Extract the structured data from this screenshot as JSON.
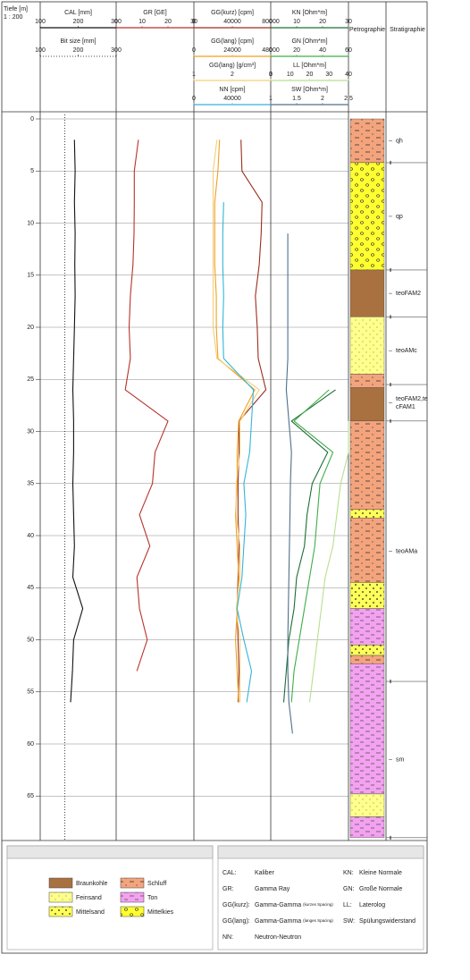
{
  "chart_data": {
    "type": "well_log",
    "depth_label": "Tiefe [m]",
    "scale_label": "1 : 200",
    "ylim": [
      0,
      69
    ],
    "yticks": [
      0,
      5,
      10,
      15,
      20,
      25,
      30,
      35,
      40,
      45,
      50,
      55,
      60,
      65
    ],
    "grid": true,
    "depth": [
      2,
      5,
      8,
      11,
      14,
      17,
      20,
      23,
      26,
      29,
      32,
      35,
      38,
      41,
      44,
      47,
      50,
      53,
      56,
      59
    ],
    "tracks": [
      {
        "curves": [
          {
            "name": "CAL [mm]",
            "color": "#111111",
            "xlim": [
              100,
              300
            ],
            "xticks": [
              100,
              200,
              300
            ],
            "values": [
              190,
              192,
              190,
              192,
              191,
              192,
              190,
              188,
              186,
              188,
              188,
              186,
              188,
              190,
              186,
              212,
              188,
              185,
              180,
              null
            ]
          },
          {
            "name": "Bit size [mm]",
            "color": "#111111",
            "dashed": true,
            "xlim": [
              100,
              300
            ],
            "xticks": [
              100,
              200,
              300
            ],
            "value": 165
          }
        ]
      },
      {
        "curves": [
          {
            "name": "GR [GE]",
            "color": "#b8322a",
            "xlim": [
              0,
              30
            ],
            "xticks": [
              0,
              10,
              20,
              30
            ],
            "values": [
              8.6,
              7,
              7,
              6.9,
              6.5,
              5.5,
              5,
              5.5,
              3.5,
              20,
              15,
              14,
              9,
              13,
              8,
              9,
              12,
              8,
              null,
              null
            ]
          }
        ]
      },
      {
        "curves": [
          {
            "name": "GG(kurz) [cpm]",
            "color": "#9a2e1e",
            "xlim": [
              0,
              80000
            ],
            "xticks": [
              0,
              40000,
              80000
            ],
            "values": [
              49000,
              50000,
              71000,
              70000,
              68000,
              64000,
              66000,
              67000,
              75000,
              47000,
              47000,
              46000,
              46000,
              47000,
              46000,
              45000,
              46000,
              47000,
              46000,
              null
            ]
          },
          {
            "name": "GG(lang) [cpm]",
            "color": "#f0a020",
            "xlim": [
              0,
              48000
            ],
            "xticks": [
              0,
              24000,
              48000
            ],
            "values": [
              16000,
              15000,
              13000,
              13000,
              13000,
              14000,
              14000,
              15000,
              38000,
              28000,
              27000,
              27000,
              26000,
              27000,
              28000,
              27000,
              26000,
              27000,
              28000,
              null
            ]
          },
          {
            "name": "GG(lang) [g/cm³]",
            "color": "#f3cf7a",
            "xlim": [
              1,
              3
            ],
            "xticks": [
              1,
              2,
              3
            ],
            "values": [
              1.6,
              1.5,
              1.5,
              1.5,
              1.5,
              1.5,
              1.5,
              1.6,
              2.7,
              2.2,
              2.2,
              2.1,
              2.1,
              2.2,
              2.2,
              2.1,
              2.2,
              2.2,
              2.2,
              null
            ]
          },
          {
            "name": "NN [cpm]",
            "color": "#33b5d6",
            "xlim": [
              0,
              80000
            ],
            "xticks": [
              0,
              40000
            ],
            "values": [
              null,
              null,
              31000,
              30000,
              30000,
              31000,
              30000,
              31000,
              62000,
              60000,
              58000,
              52000,
              54000,
              52000,
              50000,
              45000,
              52000,
              60000,
              55000,
              null
            ]
          }
        ]
      },
      {
        "curves": [
          {
            "name": "KN [Ohm*m]",
            "color": "#1d6e36",
            "xlim": [
              0,
              30
            ],
            "xticks": [
              0,
              10,
              20,
              30
            ],
            "values": [
              null,
              null,
              null,
              null,
              null,
              null,
              null,
              null,
              25,
              8,
              22,
              16,
              14,
              13,
              10,
              9,
              7,
              6,
              5,
              null
            ]
          },
          {
            "name": "GN [Ohm*m]",
            "color": "#3fae48",
            "xlim": [
              0,
              60
            ],
            "xticks": [
              0,
              20,
              40,
              60
            ],
            "values": [
              null,
              null,
              null,
              null,
              null,
              null,
              null,
              null,
              45,
              18,
              48,
              38,
              36,
              34,
              30,
              26,
              22,
              18,
              16,
              null
            ]
          },
          {
            "name": "LL [Ohm*m]",
            "color": "#b7e08e",
            "xlim": [
              0,
              40
            ],
            "xticks": [
              0,
              10,
              20,
              30,
              40
            ],
            "values": [
              null,
              null,
              null,
              null,
              null,
              null,
              null,
              null,
              null,
              40,
              40,
              36,
              34,
              32,
              28,
              26,
              24,
              22,
              20,
              null
            ]
          },
          {
            "name": "SW [Ohm*m]",
            "color": "#4f6f8a",
            "xlim": [
              1,
              2.5
            ],
            "xticks": [
              1,
              1.5,
              2,
              2.5
            ],
            "values": [
              null,
              null,
              null,
              1.33,
              1.33,
              1.33,
              1.33,
              1.33,
              1.3,
              1.35,
              1.4,
              1.38,
              1.37,
              1.36,
              1.35,
              1.34,
              1.33,
              1.33,
              1.35,
              1.42
            ]
          }
        ]
      }
    ],
    "petrography_label": "Petrographie",
    "petrography": [
      {
        "top": 0,
        "bottom": 4.2,
        "kind": "Schluff"
      },
      {
        "top": 4.2,
        "bottom": 14.5,
        "kind": "Mittelkies"
      },
      {
        "top": 14.5,
        "bottom": 19,
        "kind": "Braunkohle"
      },
      {
        "top": 19,
        "bottom": 24.5,
        "kind": "Feinsand"
      },
      {
        "top": 24.5,
        "bottom": 25.8,
        "kind": "Schluff"
      },
      {
        "top": 25.8,
        "bottom": 29,
        "kind": "Braunkohle"
      },
      {
        "top": 29,
        "bottom": 37.5,
        "kind": "Schluff"
      },
      {
        "top": 37.5,
        "bottom": 38.3,
        "kind": "Mittelsand"
      },
      {
        "top": 38.3,
        "bottom": 44.5,
        "kind": "Schluff"
      },
      {
        "top": 44.5,
        "bottom": 47,
        "kind": "Mittelsand"
      },
      {
        "top": 47,
        "bottom": 50.5,
        "kind": "Ton"
      },
      {
        "top": 50.5,
        "bottom": 51.5,
        "kind": "Mittelsand"
      },
      {
        "top": 51.5,
        "bottom": 52.3,
        "kind": "Schluff"
      },
      {
        "top": 52.3,
        "bottom": 64.8,
        "kind": "Ton"
      },
      {
        "top": 64.8,
        "bottom": 67,
        "kind": "Feinsand"
      },
      {
        "top": 67,
        "bottom": 69,
        "kind": "Ton"
      }
    ],
    "stratigraphy_label": "Stratigraphie",
    "stratigraphy": [
      {
        "lines": [
          "qh"
        ],
        "top": 0,
        "bottom": 4.2
      },
      {
        "lines": [
          "qp"
        ],
        "top": 4.2,
        "bottom": 14.5
      },
      {
        "lines": [
          "teoFAM2"
        ],
        "top": 14.5,
        "bottom": 19
      },
      {
        "lines": [
          "teoAMc"
        ],
        "top": 19,
        "bottom": 25.5
      },
      {
        "lines": [
          "teoFAM2,te",
          "cFAM1"
        ],
        "top": 25.5,
        "bottom": 29
      },
      {
        "lines": [
          "teoAMa"
        ],
        "top": 29,
        "bottom": 54
      },
      {
        "lines": [
          "sm"
        ],
        "top": 54,
        "bottom": 69
      }
    ],
    "legend": [
      {
        "name": "Braunkohle"
      },
      {
        "name": "Schluff"
      },
      {
        "name": "Feinsand"
      },
      {
        "name": "Ton"
      },
      {
        "name": "Mittelsand"
      },
      {
        "name": "Mittelkies"
      }
    ],
    "abbreviations": {
      "left": [
        {
          "abbr": "CAL:",
          "text": "Kaliber"
        },
        {
          "abbr": "GR:",
          "text": "Gamma Ray"
        },
        {
          "abbr": "GG(kurz):",
          "text": "Gamma-Gamma",
          "note": "(kurzes Spacing)"
        },
        {
          "abbr": "GG(lang):",
          "text": "Gamma-Gamma",
          "note": "(langes Spacing)"
        },
        {
          "abbr": "NN:",
          "text": "Neutron-Neutron"
        }
      ],
      "right": [
        {
          "abbr": "KN:",
          "text": "Kleine Normale"
        },
        {
          "abbr": "GN:",
          "text": "Große Normale"
        },
        {
          "abbr": "LL:",
          "text": "Laterolog"
        },
        {
          "abbr": "SW:",
          "text": "Spülungswiderstand"
        }
      ]
    }
  }
}
